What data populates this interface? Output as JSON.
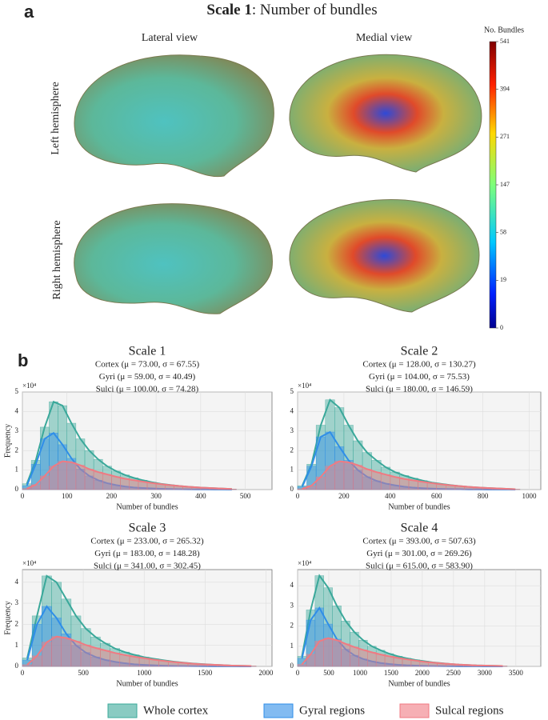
{
  "figure": {
    "panel_a": "a",
    "panel_b": "b",
    "title_bold": "Scale 1",
    "title_rest": ": Number of bundles",
    "column_labels": [
      "Lateral view",
      "Medial view"
    ],
    "row_labels": [
      "Left hemisphere",
      "Right hemisphere"
    ],
    "colorbar": {
      "label": "No. Bundles",
      "ticks": [
        0,
        19,
        58,
        147,
        271,
        394,
        541
      ]
    }
  },
  "chart_data": [
    {
      "type": "histogram",
      "title": "Scale 1",
      "stats": [
        "Cortex (μ = 73.00, σ = 67.55)",
        "Gyri (μ = 59.00, σ = 40.49)",
        "Sulci (μ = 100.00, σ = 74.28)"
      ],
      "xlabel": "Number of bundles",
      "ylabel": "Frequency",
      "y_exponent": "×10⁴",
      "xlim": [
        0,
        560
      ],
      "xticks": [
        0,
        100,
        200,
        300,
        400,
        500
      ],
      "ylim": [
        0,
        5
      ],
      "yticks": [
        0,
        1,
        2,
        3,
        4,
        5
      ],
      "grid": true,
      "bins": [
        0,
        20,
        40,
        60,
        80,
        100,
        120,
        140,
        160,
        180,
        200,
        220,
        240,
        260,
        280,
        300,
        320,
        340,
        360,
        380,
        400,
        420,
        440,
        460,
        480
      ],
      "series": [
        {
          "name": "Whole cortex",
          "color": "#3aa89a",
          "values": [
            0.3,
            1.5,
            3.2,
            4.5,
            4.3,
            3.4,
            2.6,
            2.0,
            1.55,
            1.2,
            0.95,
            0.75,
            0.6,
            0.48,
            0.38,
            0.3,
            0.24,
            0.19,
            0.15,
            0.12,
            0.09,
            0.07,
            0.05,
            0.03
          ]
        },
        {
          "name": "Gyral regions",
          "color": "#2f8ee8",
          "values": [
            0.2,
            1.3,
            2.6,
            2.9,
            2.3,
            1.6,
            1.05,
            0.7,
            0.48,
            0.33,
            0.23,
            0.16,
            0.11,
            0.08,
            0.06,
            0.04,
            0.03,
            0.02,
            0.015,
            0.01,
            0.008,
            0.005,
            0.003,
            0.002
          ]
        },
        {
          "name": "Sulcal regions",
          "color": "#f07a82",
          "values": [
            0.05,
            0.25,
            0.7,
            1.2,
            1.45,
            1.4,
            1.25,
            1.05,
            0.9,
            0.78,
            0.66,
            0.56,
            0.48,
            0.41,
            0.34,
            0.28,
            0.23,
            0.19,
            0.15,
            0.12,
            0.09,
            0.07,
            0.05,
            0.03
          ]
        }
      ]
    },
    {
      "type": "histogram",
      "title": "Scale 2",
      "stats": [
        "Cortex (μ = 128.00, σ = 130.27)",
        "Gyri (μ = 104.00, σ = 75.53)",
        "Sulci (μ = 180.00, σ = 146.59)"
      ],
      "xlabel": "Number of bundles",
      "y_exponent": "×10⁴",
      "xlim": [
        0,
        1050
      ],
      "xticks": [
        0,
        200,
        400,
        600,
        800,
        1000
      ],
      "ylim": [
        0,
        5
      ],
      "yticks": [
        0,
        1,
        2,
        3,
        4,
        5
      ],
      "grid": true,
      "bins": [
        0,
        40,
        80,
        120,
        160,
        200,
        240,
        280,
        320,
        360,
        400,
        440,
        480,
        520,
        560,
        600,
        640,
        680,
        720,
        760,
        800,
        840,
        880,
        920,
        960
      ],
      "series": [
        {
          "name": "Whole cortex",
          "color": "#3aa89a",
          "values": [
            0.2,
            1.3,
            3.3,
            4.6,
            4.2,
            3.3,
            2.5,
            1.9,
            1.5,
            1.15,
            0.9,
            0.72,
            0.58,
            0.46,
            0.36,
            0.29,
            0.23,
            0.18,
            0.14,
            0.11,
            0.08,
            0.06,
            0.04,
            0.02
          ]
        },
        {
          "name": "Gyral regions",
          "color": "#2f8ee8",
          "values": [
            0.15,
            1.2,
            2.7,
            2.95,
            2.2,
            1.5,
            1.0,
            0.66,
            0.45,
            0.31,
            0.22,
            0.15,
            0.1,
            0.07,
            0.05,
            0.035,
            0.025,
            0.018,
            0.012,
            0.008,
            0.006,
            0.004,
            0.003,
            0.002
          ]
        },
        {
          "name": "Sulcal regions",
          "color": "#f07a82",
          "values": [
            0.04,
            0.2,
            0.65,
            1.2,
            1.45,
            1.4,
            1.25,
            1.05,
            0.9,
            0.77,
            0.65,
            0.55,
            0.47,
            0.4,
            0.33,
            0.27,
            0.22,
            0.18,
            0.14,
            0.11,
            0.08,
            0.06,
            0.04,
            0.02
          ]
        }
      ]
    },
    {
      "type": "histogram",
      "title": "Scale 3",
      "stats": [
        "Cortex (μ = 233.00, σ = 265.32)",
        "Gyri (μ = 183.00, σ = 148.28)",
        "Sulci (μ = 341.00, σ = 302.45)"
      ],
      "xlabel": "Number of bundles",
      "ylabel": "Frequency",
      "y_exponent": "×10⁴",
      "xlim": [
        0,
        2050
      ],
      "xticks": [
        0,
        500,
        1000,
        1500,
        2000
      ],
      "ylim": [
        0,
        4.6
      ],
      "yticks": [
        0,
        1,
        2,
        3,
        4
      ],
      "grid": true,
      "bins": [
        0,
        80,
        160,
        240,
        320,
        400,
        480,
        560,
        640,
        720,
        800,
        880,
        960,
        1040,
        1120,
        1200,
        1280,
        1360,
        1440,
        1520,
        1600,
        1680,
        1760,
        1840,
        1920
      ],
      "series": [
        {
          "name": "Whole cortex",
          "color": "#3aa89a",
          "values": [
            0.4,
            2.4,
            4.3,
            4.0,
            3.2,
            2.4,
            1.8,
            1.4,
            1.1,
            0.85,
            0.68,
            0.55,
            0.44,
            0.36,
            0.29,
            0.23,
            0.18,
            0.14,
            0.11,
            0.08,
            0.06,
            0.04,
            0.03,
            0.02
          ]
        },
        {
          "name": "Gyral regions",
          "color": "#2f8ee8",
          "values": [
            0.3,
            2.0,
            2.85,
            2.3,
            1.55,
            1.0,
            0.66,
            0.45,
            0.31,
            0.22,
            0.15,
            0.1,
            0.07,
            0.05,
            0.035,
            0.025,
            0.018,
            0.012,
            0.008,
            0.006,
            0.004,
            0.003,
            0.002,
            0.001
          ]
        },
        {
          "name": "Sulcal regions",
          "color": "#f07a82",
          "values": [
            0.08,
            0.5,
            1.15,
            1.42,
            1.35,
            1.2,
            1.02,
            0.88,
            0.76,
            0.64,
            0.54,
            0.46,
            0.39,
            0.32,
            0.26,
            0.21,
            0.17,
            0.13,
            0.1,
            0.08,
            0.06,
            0.04,
            0.03,
            0.02
          ]
        }
      ]
    },
    {
      "type": "histogram",
      "title": "Scale 4",
      "stats": [
        "Cortex (μ = 393.00, σ = 507.63)",
        "Gyri (μ = 301.00, σ = 269.26)",
        "Sulci (μ = 615.00, σ = 583.90)"
      ],
      "xlabel": "Number of bundles",
      "y_exponent": "×10⁴",
      "xlim": [
        0,
        3900
      ],
      "xticks": [
        0,
        500,
        1000,
        1500,
        2000,
        2500,
        3000,
        3500
      ],
      "ylim": [
        0,
        4.8
      ],
      "yticks": [
        0,
        1,
        2,
        3,
        4
      ],
      "grid": true,
      "bins": [
        0,
        140,
        280,
        420,
        560,
        700,
        840,
        980,
        1120,
        1260,
        1400,
        1540,
        1680,
        1820,
        1960,
        2100,
        2240,
        2380,
        2520,
        2660,
        2800,
        2940,
        3080,
        3220,
        3360
      ],
      "series": [
        {
          "name": "Whole cortex",
          "color": "#3aa89a",
          "values": [
            0.5,
            2.8,
            4.5,
            3.9,
            3.0,
            2.25,
            1.7,
            1.3,
            1.0,
            0.8,
            0.63,
            0.5,
            0.4,
            0.32,
            0.26,
            0.2,
            0.16,
            0.12,
            0.09,
            0.07,
            0.05,
            0.04,
            0.03,
            0.02
          ]
        },
        {
          "name": "Gyral regions",
          "color": "#2f8ee8",
          "values": [
            0.4,
            2.3,
            2.9,
            2.1,
            1.35,
            0.85,
            0.55,
            0.37,
            0.25,
            0.17,
            0.12,
            0.08,
            0.055,
            0.04,
            0.03,
            0.02,
            0.014,
            0.01,
            0.007,
            0.005,
            0.003,
            0.002,
            0.001,
            0.001
          ]
        },
        {
          "name": "Sulcal regions",
          "color": "#f07a82",
          "values": [
            0.1,
            0.6,
            1.25,
            1.4,
            1.3,
            1.12,
            0.96,
            0.82,
            0.7,
            0.59,
            0.5,
            0.42,
            0.35,
            0.29,
            0.23,
            0.19,
            0.15,
            0.12,
            0.09,
            0.07,
            0.05,
            0.04,
            0.03,
            0.02
          ]
        }
      ]
    }
  ]
}
